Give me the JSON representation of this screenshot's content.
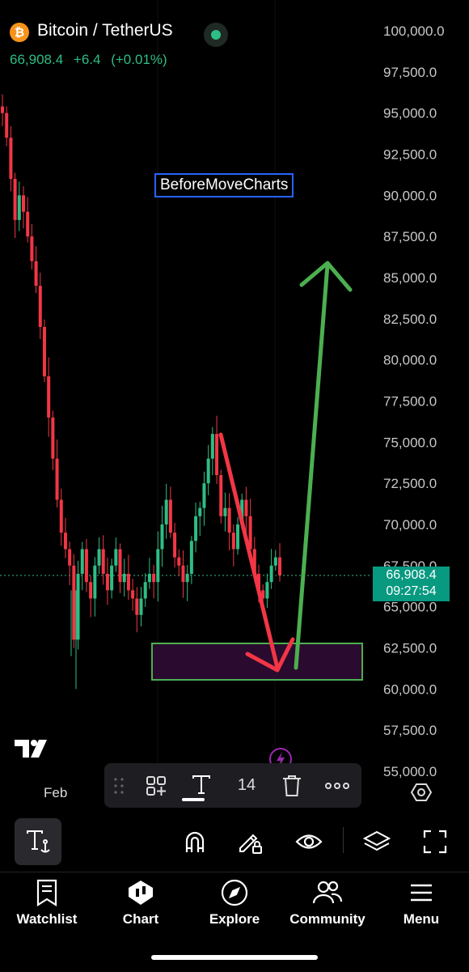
{
  "header": {
    "symbol_icon": "bitcoin-icon",
    "symbol_glyph": "₿",
    "title": "Bitcoin / TetherUS",
    "last_price": "66,908.4",
    "change": "+6.4",
    "change_pct": "(+0.01%)",
    "market_status": "live-dot"
  },
  "colors": {
    "up": "#2ebd85",
    "down": "#f23645",
    "annotation_up_arrow": "#4caf50",
    "annotation_down_arrow": "#f23645",
    "zone_border": "#4caf50",
    "zone_fill": "#2a0a2e",
    "label_border": "#2962ff"
  },
  "chart": {
    "annotation_label": "BeforeMoveCharts",
    "price_tag_value": "66,908.4",
    "price_tag_countdown": "09:27:54",
    "x_tick": "Feb"
  },
  "chart_data": {
    "type": "candlestick",
    "pair": "Bitcoin / TetherUS",
    "y_ticks": [
      "100,000.0",
      "97,500.0",
      "95,000.0",
      "92,500.0",
      "90,000.0",
      "87,500.0",
      "85,000.0",
      "82,500.0",
      "80,000.0",
      "77,500.0",
      "75,000.0",
      "72,500.0",
      "70,000.0",
      "67,500.0",
      "65,000.0",
      "62,500.0",
      "60,000.0",
      "57,500.0",
      "55,000.0"
    ],
    "ylim": [
      55000,
      100000
    ],
    "x_ticks": [
      "Feb"
    ],
    "approx_closes": [
      95000,
      93500,
      91000,
      88500,
      90000,
      89000,
      87500,
      86000,
      84500,
      82000,
      79000,
      76500,
      74000,
      71500,
      69500,
      68500,
      67500,
      63000,
      67000,
      68500,
      66500,
      65500,
      67500,
      68500,
      67000,
      66000,
      67500,
      68500,
      66500,
      67000,
      66000,
      65500,
      64500,
      65500,
      66500,
      67000,
      66500,
      68500,
      70000,
      71500,
      69500,
      68000,
      67500,
      66500,
      67000,
      69000,
      70500,
      71000,
      72500,
      74000,
      75500,
      73000,
      70500,
      71000,
      69500,
      68500,
      70000,
      71500,
      70500,
      68500,
      67000,
      66000,
      65500,
      66500,
      67500,
      68000,
      66908.4
    ],
    "current_price": 66908.4,
    "annotations": [
      {
        "type": "text",
        "text": "BeforeMoveCharts"
      },
      {
        "type": "arrow",
        "direction": "down",
        "from_price": 75500,
        "to_price": 61000
      },
      {
        "type": "rectangle",
        "top_price": 62800,
        "bottom_price": 60600
      },
      {
        "type": "arrow",
        "direction": "up",
        "from_price": 61500,
        "to_price": 86000
      }
    ]
  },
  "draw_toolbar": {
    "items": [
      {
        "name": "drag-handle-icon"
      },
      {
        "name": "add-to-favorites-icon"
      },
      {
        "name": "text-style-icon",
        "glyph": "T"
      },
      {
        "name": "font-size",
        "value": "14"
      },
      {
        "name": "trash-icon"
      },
      {
        "name": "more-icon"
      }
    ]
  },
  "tools": [
    {
      "name": "text-tool-icon"
    },
    {
      "name": "magnet-icon"
    },
    {
      "name": "lock-drawing-icon"
    },
    {
      "name": "eye-icon"
    },
    {
      "name": "layers-icon"
    },
    {
      "name": "fullscreen-icon"
    }
  ],
  "nav": {
    "items": [
      {
        "label": "Watchlist",
        "icon": "bookmark-icon"
      },
      {
        "label": "Chart",
        "icon": "chart-icon"
      },
      {
        "label": "Explore",
        "icon": "compass-icon"
      },
      {
        "label": "Community",
        "icon": "people-icon"
      },
      {
        "label": "Menu",
        "icon": "hamburger-icon"
      }
    ]
  }
}
